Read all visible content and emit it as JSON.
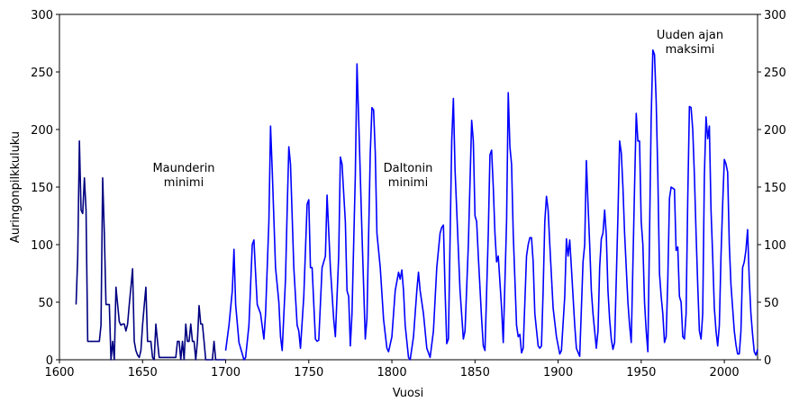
{
  "chart_data": {
    "type": "line",
    "xlabel": "Vuosi",
    "ylabel": "Auringonpilkkuluku",
    "xlim": [
      1600,
      2020
    ],
    "xticks": [
      1600,
      1650,
      1700,
      1750,
      1800,
      1850,
      1900,
      1950,
      2000
    ],
    "ylim": [
      0,
      300
    ],
    "yticks": [
      0,
      50,
      100,
      150,
      200,
      250,
      300
    ],
    "y2lim": [
      0,
      300
    ],
    "y2ticks": [
      0,
      50,
      100,
      150,
      200,
      250,
      300
    ],
    "annotations": [
      [
        "Maunderin",
        "minimi"
      ],
      [
        "Daltonin",
        "minimi"
      ],
      [
        "Uuden ajan",
        "maksimi"
      ]
    ],
    "series": [
      {
        "color": "#000080",
        "x": [
          1610,
          1611,
          1612,
          1613,
          1614,
          1615,
          1616,
          1617,
          1624,
          1625,
          1626,
          1627,
          1628,
          1630,
          1631,
          1632,
          1633,
          1634,
          1635,
          1636,
          1637,
          1638,
          1639,
          1640,
          1641,
          1642,
          1643,
          1644,
          1645,
          1646,
          1647,
          1648,
          1649,
          1650,
          1651,
          1652,
          1653,
          1655,
          1656,
          1657,
          1658,
          1659,
          1660,
          1670,
          1671,
          1672,
          1673,
          1674,
          1675,
          1676,
          1677,
          1678,
          1679,
          1680,
          1681,
          1682,
          1683,
          1684,
          1685,
          1686,
          1687,
          1688,
          1692,
          1693,
          1694,
          1700
        ],
        "values": [
          48,
          90,
          190,
          130,
          127,
          158,
          130,
          16,
          16,
          30,
          158,
          110,
          48,
          48,
          0,
          16,
          0,
          63,
          48,
          33,
          30,
          31,
          31,
          25,
          31,
          48,
          63,
          79,
          16,
          8,
          4,
          2,
          8,
          30,
          47,
          63,
          16,
          16,
          2,
          0,
          31,
          16,
          2,
          2,
          16,
          16,
          0,
          16,
          0,
          31,
          16,
          16,
          31,
          16,
          16,
          0,
          16,
          47,
          31,
          31,
          16,
          0,
          0,
          16,
          0,
          0
        ]
      },
      {
        "color": "#0000ff",
        "x": [
          1700,
          1702,
          1704,
          1705,
          1706,
          1708,
          1710,
          1711,
          1712,
          1714,
          1716,
          1717,
          1718,
          1719,
          1721,
          1723,
          1724,
          1726,
          1727,
          1728,
          1730,
          1732,
          1733,
          1734,
          1736,
          1737,
          1738,
          1739,
          1741,
          1743,
          1744,
          1745,
          1747,
          1749,
          1750,
          1751,
          1752,
          1754,
          1755,
          1756,
          1758,
          1760,
          1761,
          1763,
          1765,
          1766,
          1768,
          1769,
          1770,
          1772,
          1773,
          1774,
          1775,
          1776,
          1778,
          1779,
          1780,
          1782,
          1784,
          1785,
          1787,
          1788,
          1789,
          1790,
          1791,
          1793,
          1795,
          1797,
          1798,
          1800,
          1802,
          1804,
          1805,
          1806,
          1807,
          1808,
          1810,
          1811,
          1813,
          1815,
          1816,
          1817,
          1819,
          1821,
          1823,
          1825,
          1827,
          1829,
          1830,
          1831,
          1832,
          1833,
          1834,
          1836,
          1837,
          1838,
          1840,
          1841,
          1843,
          1844,
          1846,
          1848,
          1849,
          1850,
          1851,
          1852,
          1854,
          1855,
          1856,
          1858,
          1859,
          1860,
          1861,
          1862,
          1863,
          1864,
          1866,
          1867,
          1869,
          1870,
          1871,
          1872,
          1873,
          1875,
          1876,
          1877,
          1878,
          1879,
          1881,
          1882,
          1883,
          1884,
          1885,
          1886,
          1888,
          1889,
          1890,
          1891,
          1892,
          1893,
          1894,
          1895,
          1897,
          1899,
          1901,
          1902,
          1904,
          1905,
          1906,
          1907,
          1908,
          1910,
          1911,
          1913,
          1915,
          1916,
          1917,
          1918,
          1919,
          1920,
          1921,
          1922,
          1923,
          1924,
          1925,
          1926,
          1927,
          1928,
          1929,
          1930,
          1931,
          1932,
          1933,
          1934,
          1936,
          1937,
          1938,
          1939,
          1940,
          1942,
          1943,
          1944,
          1946,
          1947,
          1948,
          1949,
          1950,
          1951,
          1952,
          1953,
          1954,
          1956,
          1957,
          1958,
          1959,
          1960,
          1961,
          1962,
          1963,
          1964,
          1965,
          1966,
          1967,
          1968,
          1970,
          1971,
          1972,
          1973,
          1974,
          1975,
          1976,
          1977,
          1978,
          1979,
          1980,
          1981,
          1982,
          1983,
          1984,
          1985,
          1986,
          1987,
          1988,
          1989,
          1990,
          1991,
          1992,
          1993,
          1994,
          1995,
          1996,
          1997,
          1998,
          1999,
          2000,
          2001,
          2002,
          2003,
          2004,
          2005,
          2006,
          2007,
          2008,
          2009,
          2010,
          2011,
          2012,
          2013,
          2014,
          2015,
          2016,
          2017,
          2018,
          2019,
          2020
        ],
        "values": [
          8,
          30,
          60,
          96,
          48,
          15,
          5,
          0,
          2,
          30,
          100,
          104,
          75,
          48,
          40,
          18,
          40,
          120,
          203,
          165,
          80,
          50,
          20,
          8,
          70,
          130,
          185,
          170,
          80,
          30,
          25,
          10,
          55,
          135,
          139,
          80,
          80,
          18,
          16,
          17,
          80,
          90,
          143,
          80,
          35,
          20,
          90,
          176,
          170,
          120,
          60,
          55,
          12,
          40,
          160,
          257,
          210,
          110,
          18,
          36,
          180,
          219,
          217,
          180,
          110,
          80,
          35,
          10,
          7,
          20,
          60,
          76,
          70,
          78,
          60,
          30,
          2,
          0,
          20,
          60,
          76,
          60,
          40,
          10,
          2,
          25,
          80,
          110,
          115,
          117,
          60,
          14,
          18,
          190,
          227,
          165,
          95,
          60,
          18,
          25,
          100,
          208,
          190,
          125,
          120,
          90,
          35,
          12,
          8,
          110,
          178,
          182,
          150,
          110,
          85,
          90,
          45,
          15,
          120,
          232,
          185,
          170,
          110,
          30,
          20,
          22,
          6,
          10,
          90,
          100,
          106,
          106,
          85,
          40,
          12,
          10,
          12,
          60,
          120,
          142,
          130,
          100,
          45,
          20,
          5,
          8,
          55,
          105,
          90,
          104,
          80,
          30,
          10,
          3,
          85,
          100,
          173,
          135,
          100,
          60,
          40,
          25,
          10,
          25,
          80,
          105,
          110,
          130,
          108,
          60,
          35,
          18,
          9,
          15,
          125,
          190,
          180,
          150,
          110,
          50,
          30,
          15,
          150,
          214,
          190,
          190,
          120,
          100,
          50,
          25,
          7,
          210,
          269,
          265,
          225,
          160,
          75,
          55,
          40,
          15,
          20,
          70,
          140,
          150,
          148,
          95,
          98,
          55,
          50,
          20,
          18,
          40,
          140,
          220,
          219,
          200,
          160,
          110,
          65,
          25,
          18,
          40,
          160,
          211,
          192,
          203,
          130,
          90,
          45,
          25,
          12,
          30,
          90,
          135,
          174,
          170,
          163,
          100,
          65,
          45,
          25,
          13,
          5,
          5,
          25,
          80,
          85,
          95,
          113,
          70,
          40,
          22,
          7,
          4,
          9
        ]
      }
    ]
  }
}
